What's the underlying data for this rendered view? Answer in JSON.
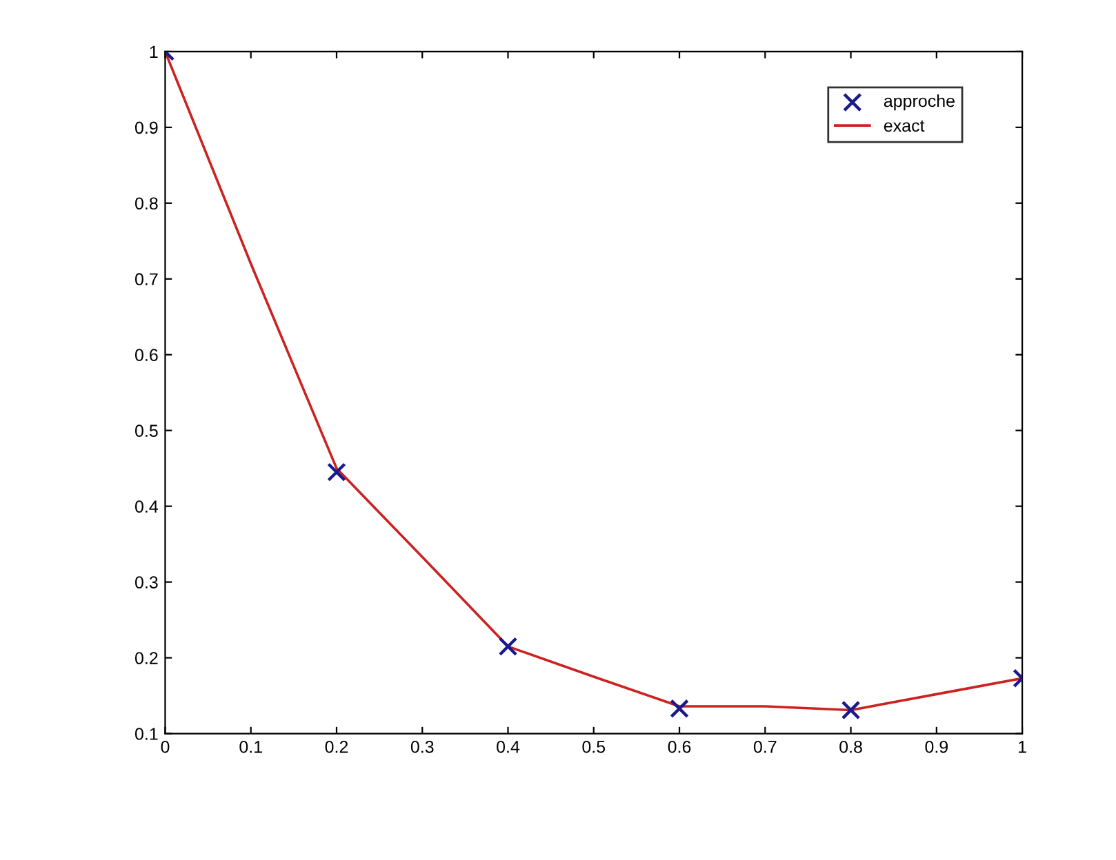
{
  "chart_data": {
    "type": "line",
    "series": [
      {
        "name": "approche",
        "type": "scatter",
        "color": "#1a1a8c",
        "marker": "cross",
        "x": [
          0,
          0.2,
          0.4,
          0.6,
          0.8,
          1
        ],
        "values": [
          1.0,
          0.445,
          0.215,
          0.133,
          0.131,
          0.173
        ]
      },
      {
        "name": "exact",
        "color": "#cc2222",
        "line_style": "solid",
        "x": [
          0,
          0.1,
          0.2,
          0.3,
          0.4,
          0.5,
          0.6,
          0.7,
          0.8,
          0.9,
          1
        ],
        "values": [
          1.0,
          0.72,
          0.45,
          0.333,
          0.215,
          0.175,
          0.136,
          0.136,
          0.131,
          0.152,
          0.173
        ]
      }
    ],
    "xlim": [
      0,
      1
    ],
    "xticks": [
      0,
      0.1,
      0.2,
      0.3,
      0.4,
      0.5,
      0.6,
      0.7,
      0.8,
      0.9,
      1
    ],
    "ylim": [
      0.1,
      1
    ],
    "yticks": [
      0.1,
      0.2,
      0.3,
      0.4,
      0.5,
      0.6,
      0.7,
      0.8,
      0.9,
      1
    ],
    "grid": false,
    "legend": "top right"
  }
}
